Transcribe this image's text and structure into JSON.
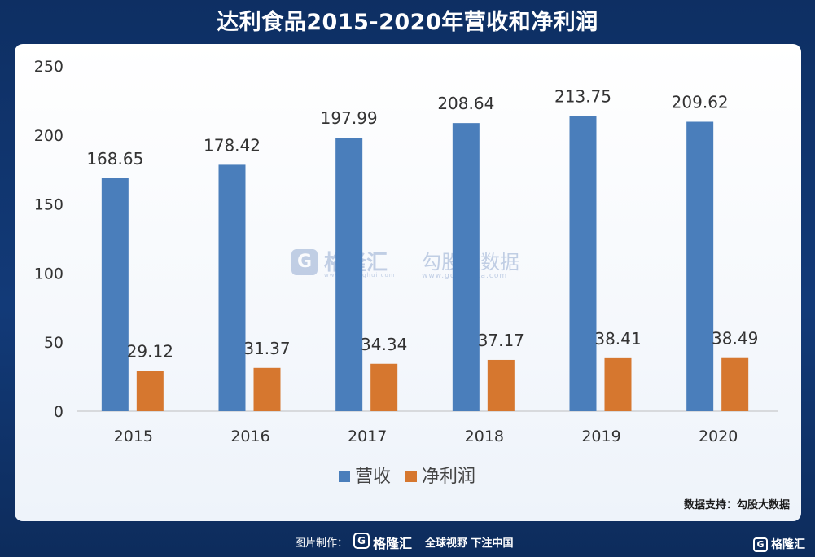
{
  "title": "达利食品2015-2020年营收和净利润",
  "source": "数据支持：勾股大数据",
  "watermark": {
    "brand": "格隆汇",
    "brand_sub": "www.gelonghui.com",
    "partner": "勾股大数据",
    "partner_sub": "www.gogudata.com",
    "logo_letter": "G"
  },
  "footer": {
    "made_by": "图片制作：",
    "brand": "格隆汇",
    "slogan": "全球视野 下注中国",
    "corner_brand": "格隆汇",
    "logo_letter": "G"
  },
  "colors": {
    "revenue": "#4a7ebb",
    "profit": "#d6772f",
    "background": "#123a78"
  },
  "chart_data": {
    "type": "bar",
    "categories": [
      "2015",
      "2016",
      "2017",
      "2018",
      "2019",
      "2020"
    ],
    "series": [
      {
        "name": "营收",
        "values": [
          168.65,
          178.42,
          197.99,
          208.64,
          213.75,
          209.62
        ],
        "labels": [
          "168.65",
          "178.42",
          "197.99",
          "208.64",
          "213.75",
          "209.62"
        ]
      },
      {
        "name": "净利润",
        "values": [
          29.12,
          31.37,
          34.34,
          37.17,
          38.41,
          38.49
        ],
        "labels": [
          "29.12",
          "31.37",
          "34.34",
          "37.17",
          "38.41",
          "38.49"
        ]
      }
    ],
    "yticks": [
      "0",
      "50",
      "100",
      "150",
      "200",
      "250"
    ],
    "ylim": [
      0,
      250
    ],
    "legend_position": "bottom-center",
    "grid": false
  }
}
